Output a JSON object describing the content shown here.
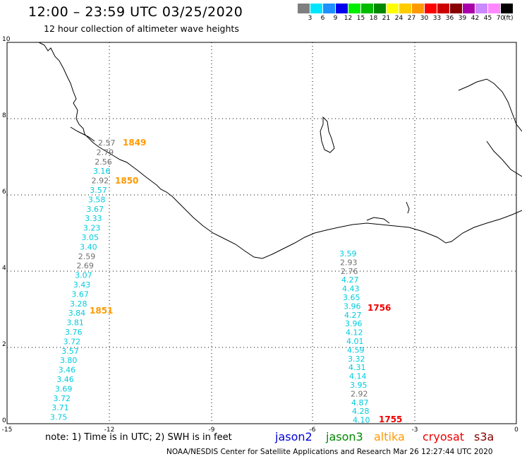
{
  "title": "12:00 – 23:59 UTC 03/25/2020",
  "subtitle": "12 hour collection of altimeter wave heights",
  "legend": {
    "unit": "(ft)",
    "scale": [
      {
        "label": "3",
        "color": "#7f7f7f"
      },
      {
        "label": "6",
        "color": "#00e5ff"
      },
      {
        "label": "9",
        "color": "#1e90ff"
      },
      {
        "label": "12",
        "color": "#0000ee"
      },
      {
        "label": "15",
        "color": "#00ee00"
      },
      {
        "label": "18",
        "color": "#00bb00"
      },
      {
        "label": "21",
        "color": "#008800"
      },
      {
        "label": "24",
        "color": "#ffff00"
      },
      {
        "label": "27",
        "color": "#ffcc00"
      },
      {
        "label": "30",
        "color": "#ff9900"
      },
      {
        "label": "33",
        "color": "#ff0000"
      },
      {
        "label": "36",
        "color": "#cc0000"
      },
      {
        "label": "39",
        "color": "#880000"
      },
      {
        "label": "42",
        "color": "#aa00aa"
      },
      {
        "label": "45",
        "color": "#cc88ff"
      },
      {
        "label": "70",
        "color": "#ff88ff"
      },
      {
        "label": "",
        "color": "#000000"
      }
    ]
  },
  "axes": {
    "x_ticks": [
      "-15",
      "-12",
      "-9",
      "-6",
      "-3",
      "0"
    ],
    "y_ticks": [
      "0",
      "2",
      "4",
      "6",
      "8",
      "10"
    ]
  },
  "tracks": [
    {
      "name": "altika-track",
      "points": [
        {
          "v": "2.57",
          "c": "#707070"
        },
        {
          "v": "2.79",
          "c": "#707070"
        },
        {
          "v": "2.56",
          "c": "#707070"
        },
        {
          "v": "3.16",
          "c": "#00ccdd"
        },
        {
          "v": "2.92",
          "c": "#707070"
        },
        {
          "v": "3.57",
          "c": "#00ccdd"
        },
        {
          "v": "3.58",
          "c": "#00ccdd"
        },
        {
          "v": "3.67",
          "c": "#00ccdd"
        },
        {
          "v": "3.33",
          "c": "#00ccdd"
        },
        {
          "v": "3.23",
          "c": "#00ccdd"
        },
        {
          "v": "3.05",
          "c": "#00ccdd"
        },
        {
          "v": "3.40",
          "c": "#00ccdd"
        },
        {
          "v": "2.59",
          "c": "#707070"
        },
        {
          "v": "2.69",
          "c": "#707070"
        },
        {
          "v": "3.07",
          "c": "#00ccdd"
        },
        {
          "v": "3.43",
          "c": "#00ccdd"
        },
        {
          "v": "3.67",
          "c": "#00ccdd"
        },
        {
          "v": "3.28",
          "c": "#00ccdd"
        },
        {
          "v": "3.84",
          "c": "#00ccdd"
        },
        {
          "v": "3.81",
          "c": "#00ccdd"
        },
        {
          "v": "3.76",
          "c": "#00ccdd"
        },
        {
          "v": "3.72",
          "c": "#00ccdd"
        },
        {
          "v": "3.57",
          "c": "#00ccdd"
        },
        {
          "v": "3.80",
          "c": "#00ccdd"
        },
        {
          "v": "3.46",
          "c": "#00ccdd"
        },
        {
          "v": "3.46",
          "c": "#00ccdd"
        },
        {
          "v": "3.69",
          "c": "#00ccdd"
        },
        {
          "v": "3.72",
          "c": "#00ccdd"
        },
        {
          "v": "3.71",
          "c": "#00ccdd"
        },
        {
          "v": "3.75",
          "c": "#00ccdd"
        }
      ]
    },
    {
      "name": "cryosat-track",
      "points": [
        {
          "v": "3.59",
          "c": "#00ccdd"
        },
        {
          "v": "2.93",
          "c": "#707070"
        },
        {
          "v": "2.76",
          "c": "#707070"
        },
        {
          "v": "4.27",
          "c": "#00ccdd"
        },
        {
          "v": "4.43",
          "c": "#00ccdd"
        },
        {
          "v": "3.65",
          "c": "#00ccdd"
        },
        {
          "v": "3.96",
          "c": "#00ccdd"
        },
        {
          "v": "4.27",
          "c": "#00ccdd"
        },
        {
          "v": "3.96",
          "c": "#00ccdd"
        },
        {
          "v": "4.12",
          "c": "#00ccdd"
        },
        {
          "v": "4.01",
          "c": "#00ccdd"
        },
        {
          "v": "4.59",
          "c": "#00ccdd"
        },
        {
          "v": "3.32",
          "c": "#00ccdd"
        },
        {
          "v": "4.31",
          "c": "#00ccdd"
        },
        {
          "v": "4.14",
          "c": "#00ccdd"
        },
        {
          "v": "3.95",
          "c": "#00ccdd"
        },
        {
          "v": "2.92",
          "c": "#707070"
        },
        {
          "v": "4.87",
          "c": "#00ccdd"
        },
        {
          "v": "4.28",
          "c": "#00ccdd"
        },
        {
          "v": "4.10",
          "c": "#00ccdd"
        }
      ]
    }
  ],
  "times": [
    {
      "label": "1849",
      "color": "#ff9900"
    },
    {
      "label": "1850",
      "color": "#ff9900"
    },
    {
      "label": "1851",
      "color": "#ff9900"
    },
    {
      "label": "1756",
      "color": "#ee0000"
    },
    {
      "label": "1755",
      "color": "#ee0000"
    }
  ],
  "note": "note:  1) Time is in UTC;  2) SWH is in feet",
  "satellites": [
    {
      "label": "jason2",
      "color": "#0000dd"
    },
    {
      "label": "jason3",
      "color": "#008800"
    },
    {
      "label": "altika",
      "color": "#ff9900"
    },
    {
      "label": "cryosat",
      "color": "#ee0000"
    },
    {
      "label": "s3a",
      "color": "#880000"
    }
  ],
  "credit": "NOAA/NESDIS Center for Satellite Applications and Research    Mar 26 12:27:44 UTC 2020"
}
